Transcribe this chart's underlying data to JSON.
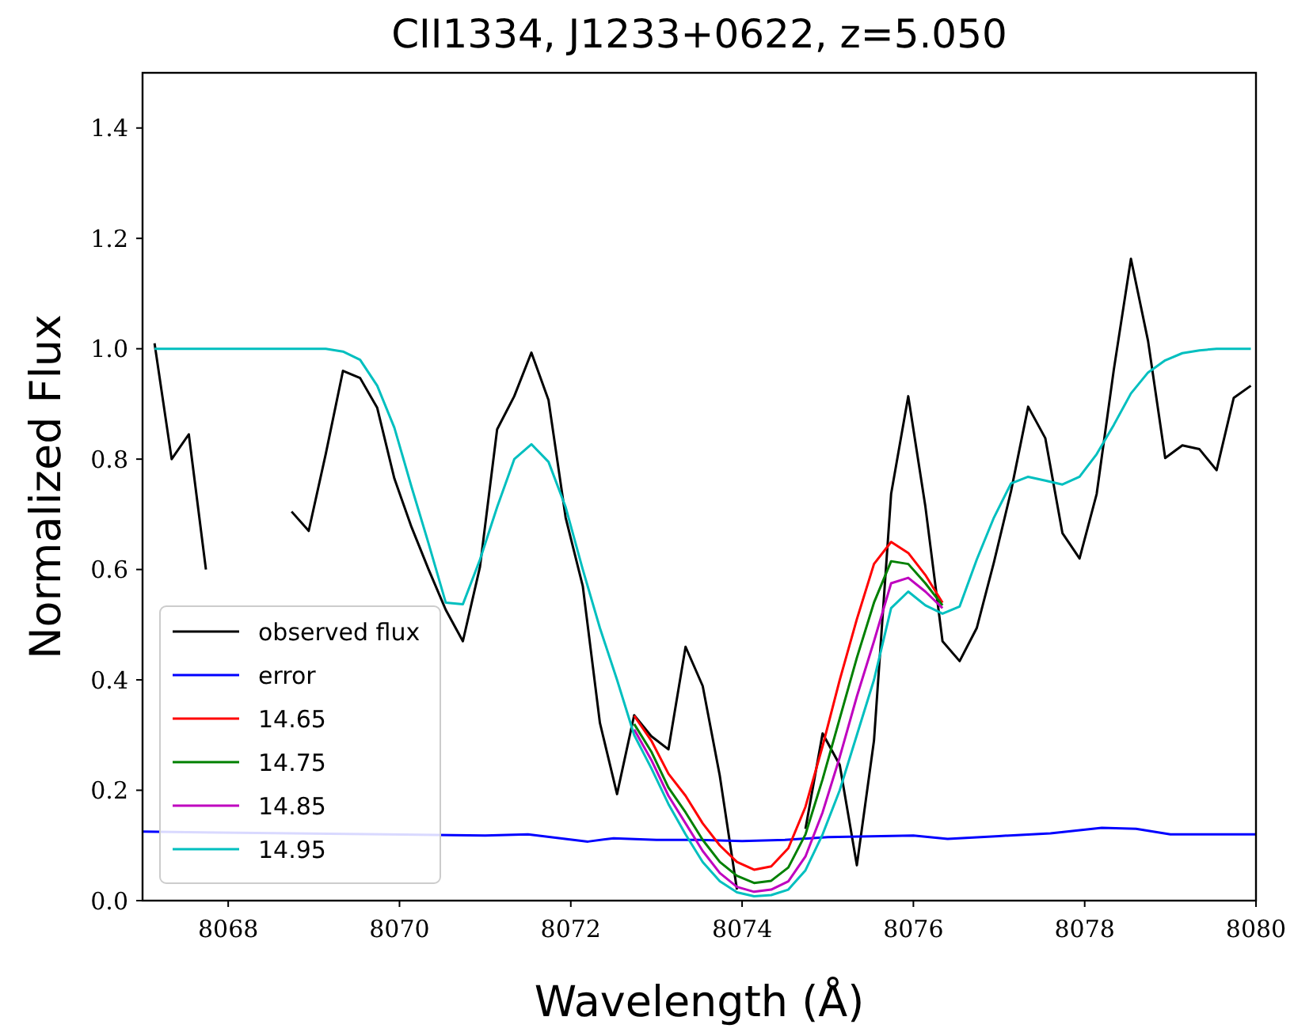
{
  "chart_data": {
    "type": "line",
    "title": "CII1334, J1233+0622, z=5.050",
    "xlabel": "Wavelength (Å)",
    "ylabel": "Normalized Flux",
    "xlim": [
      8067,
      8080
    ],
    "xticks": [
      8068,
      8070,
      8072,
      8074,
      8076,
      8078,
      8080
    ],
    "ylim": [
      0,
      1.5
    ],
    "yticks": [
      {
        "value": 0,
        "label": "0.0"
      },
      {
        "value": 0.2,
        "label": "0.2"
      },
      {
        "value": 0.4,
        "label": "0.4"
      },
      {
        "value": 0.6,
        "label": "0.6"
      },
      {
        "value": 0.8,
        "label": "0.8"
      },
      {
        "value": 1.0,
        "label": "1.0"
      },
      {
        "value": 1.2,
        "label": "1.2"
      },
      {
        "value": 1.4,
        "label": "1.4"
      }
    ],
    "grid": false,
    "legend": "bottom left",
    "marker": "none",
    "line_style": "solid",
    "x": [
      8067.14,
      8067.34,
      8067.54,
      8067.74,
      8067.94,
      8068.14,
      8068.34,
      8068.54,
      8068.74,
      8068.94,
      8069.14,
      8069.34,
      8069.54,
      8069.74,
      8069.94,
      8070.14,
      8070.34,
      8070.54,
      8070.74,
      8070.94,
      8071.14,
      8071.34,
      8071.54,
      8071.74,
      8071.94,
      8072.14,
      8072.34,
      8072.54,
      8072.74,
      8072.94,
      8073.14,
      8073.34,
      8073.54,
      8073.74,
      8073.94,
      8074.14,
      8074.34,
      8074.54,
      8074.74,
      8074.94,
      8075.14,
      8075.34,
      8075.54,
      8075.74,
      8075.94,
      8076.14,
      8076.34,
      8076.54,
      8076.74,
      8076.94,
      8077.14,
      8077.34,
      8077.54,
      8077.74,
      8077.94,
      8078.14,
      8078.34,
      8078.54,
      8078.74,
      8078.94,
      8079.14,
      8079.34,
      8079.54,
      8079.74,
      8079.94
    ],
    "series": [
      {
        "name": "observed flux",
        "color": "#000000",
        "values": [
          1.01,
          0.8,
          0.845,
          0.6,
          null,
          null,
          null,
          null,
          0.705,
          0.67,
          0.81,
          0.96,
          0.947,
          0.893,
          0.765,
          0.677,
          0.6,
          0.527,
          0.47,
          0.605,
          0.854,
          0.914,
          0.993,
          0.907,
          0.694,
          0.57,
          0.322,
          0.193,
          0.336,
          0.298,
          0.274,
          0.46,
          0.389,
          0.226,
          0.02,
          null,
          null,
          null,
          0.13,
          0.303,
          0.246,
          0.064,
          0.29,
          0.737,
          0.914,
          0.714,
          0.47,
          0.434,
          0.494,
          0.613,
          0.742,
          0.895,
          0.838,
          0.666,
          0.62,
          0.737,
          0.962,
          1.163,
          1.014,
          0.802,
          0.825,
          0.818,
          0.78,
          0.911,
          0.933
        ]
      },
      {
        "name": "error",
        "color": "#0000ff",
        "x": [
          8067,
          8071,
          8071.5,
          8072.2,
          8072.5,
          8073,
          8073.5,
          8074,
          8074.5,
          8075,
          8076,
          8076.4,
          8077,
          8077.6,
          8078.2,
          8078.6,
          8079,
          8080
        ],
        "values": [
          0.125,
          0.118,
          0.12,
          0.107,
          0.113,
          0.11,
          0.11,
          0.108,
          0.11,
          0.115,
          0.118,
          0.112,
          0.117,
          0.122,
          0.132,
          0.13,
          0.12,
          0.12
        ]
      },
      {
        "name": "14.65",
        "color": "#ff0000",
        "values": [
          null,
          null,
          null,
          null,
          null,
          null,
          null,
          null,
          null,
          null,
          null,
          null,
          null,
          null,
          null,
          null,
          null,
          null,
          null,
          null,
          null,
          null,
          null,
          null,
          null,
          null,
          null,
          null,
          0.335,
          0.29,
          0.23,
          0.19,
          0.14,
          0.1,
          0.07,
          0.056,
          0.062,
          0.095,
          0.17,
          0.28,
          0.4,
          0.51,
          0.61,
          0.65,
          0.63,
          0.59,
          0.54,
          null,
          null,
          null,
          null,
          null,
          null,
          null,
          null,
          null,
          null,
          null,
          null,
          null,
          null,
          null,
          null,
          null,
          null
        ]
      },
      {
        "name": "14.75",
        "color": "#008000",
        "values": [
          null,
          null,
          null,
          null,
          null,
          null,
          null,
          null,
          null,
          null,
          null,
          null,
          null,
          null,
          null,
          null,
          null,
          null,
          null,
          null,
          null,
          null,
          null,
          null,
          null,
          null,
          null,
          null,
          0.32,
          0.27,
          0.205,
          0.16,
          0.11,
          0.07,
          0.045,
          0.032,
          0.036,
          0.06,
          0.12,
          0.22,
          0.33,
          0.44,
          0.54,
          0.615,
          0.61,
          0.575,
          0.535,
          null,
          null,
          null,
          null,
          null,
          null,
          null,
          null,
          null,
          null,
          null,
          null,
          null,
          null,
          null,
          null,
          null,
          null
        ]
      },
      {
        "name": "14.85",
        "color": "#bf00bf",
        "values": [
          null,
          null,
          null,
          null,
          null,
          null,
          null,
          null,
          null,
          null,
          null,
          null,
          null,
          null,
          null,
          null,
          null,
          null,
          null,
          null,
          null,
          null,
          null,
          null,
          null,
          null,
          null,
          null,
          0.31,
          0.255,
          0.19,
          0.14,
          0.09,
          0.05,
          0.025,
          0.016,
          0.02,
          0.035,
          0.08,
          0.16,
          0.26,
          0.37,
          0.47,
          0.575,
          0.585,
          0.56,
          0.53,
          null,
          null,
          null,
          null,
          null,
          null,
          null,
          null,
          null,
          null,
          null,
          null,
          null,
          null,
          null,
          null,
          null,
          null
        ]
      },
      {
        "name": "14.95",
        "color": "#00bfbf",
        "values": [
          1,
          1,
          1,
          1,
          1,
          1,
          1,
          1,
          1,
          1,
          1,
          0.995,
          0.98,
          0.933,
          0.857,
          0.75,
          0.647,
          0.54,
          0.537,
          0.618,
          0.713,
          0.8,
          0.827,
          0.795,
          0.713,
          0.6,
          0.494,
          0.4,
          0.3,
          0.24,
          0.175,
          0.12,
          0.07,
          0.035,
          0.015,
          0.008,
          0.01,
          0.02,
          0.055,
          0.12,
          0.2,
          0.3,
          0.4,
          0.53,
          0.56,
          0.535,
          0.52,
          0.533,
          0.618,
          0.694,
          0.756,
          0.768,
          0.761,
          0.754,
          0.768,
          0.809,
          0.862,
          0.919,
          0.957,
          0.979,
          0.992,
          0.997,
          1,
          1,
          1
        ]
      }
    ]
  }
}
